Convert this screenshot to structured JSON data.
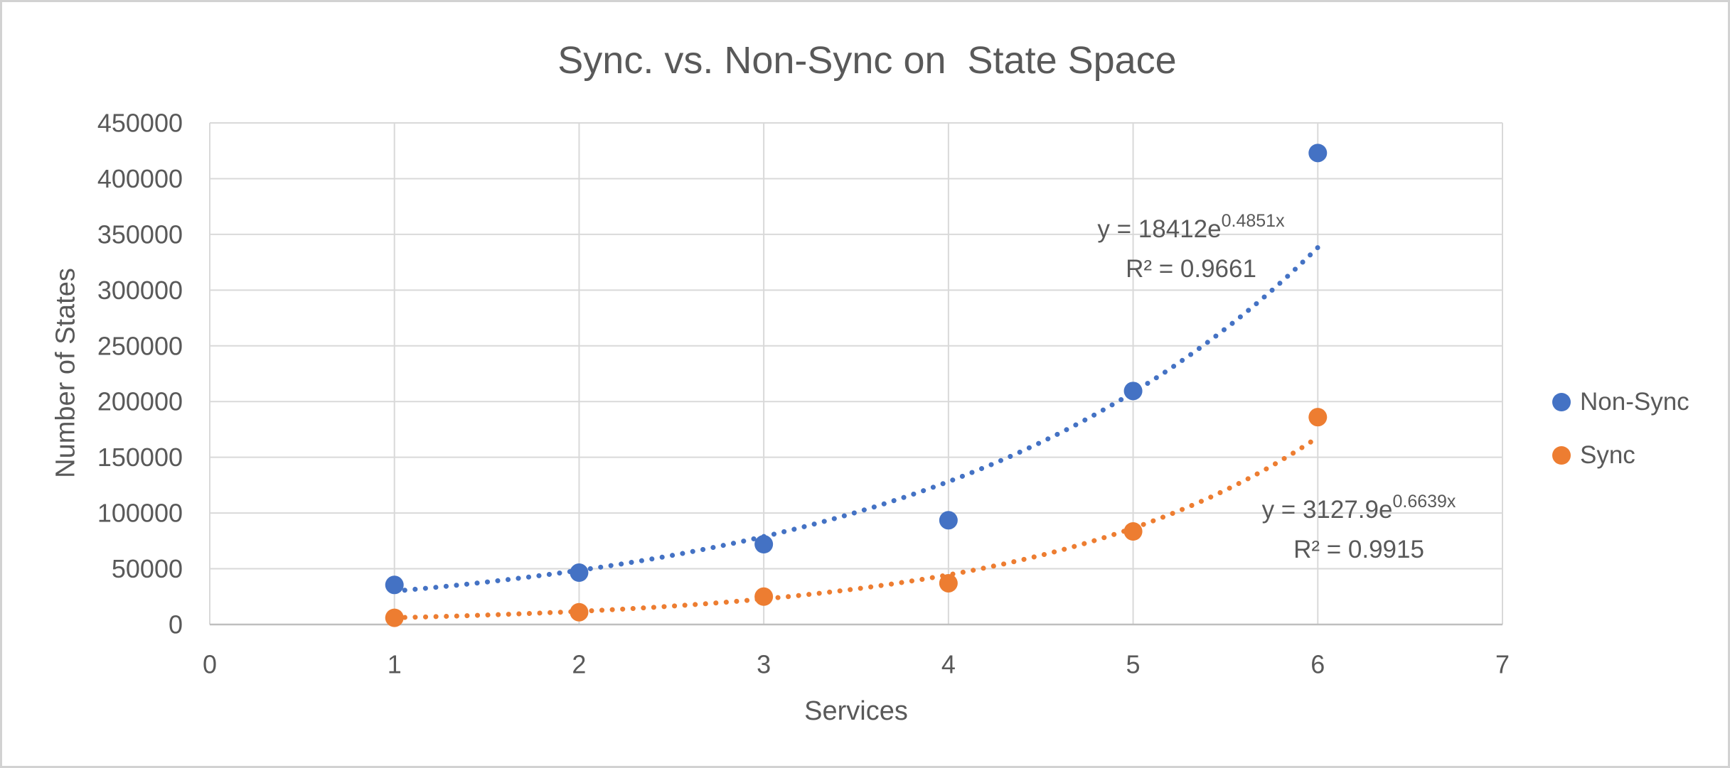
{
  "chart_data": {
    "type": "scatter",
    "title": "Sync. vs. Non-Sync on  State Space",
    "xlabel": "Services",
    "ylabel": "Number of States",
    "xlim": [
      0,
      7
    ],
    "ylim": [
      0,
      450000
    ],
    "x_ticks": [
      0,
      1,
      2,
      3,
      4,
      5,
      6,
      7
    ],
    "y_ticks": [
      0,
      50000,
      100000,
      150000,
      200000,
      250000,
      300000,
      350000,
      400000,
      450000
    ],
    "grid": true,
    "legend_position": "right-center",
    "series": [
      {
        "name": "Non-Sync",
        "color": "#4472C4",
        "x": [
          1,
          2,
          3,
          4,
          5,
          6
        ],
        "values": [
          35500,
          46500,
          72000,
          93500,
          209500,
          423000
        ],
        "trendline": {
          "type": "exponential",
          "a": 18412,
          "b": 0.4851,
          "x_start": 1,
          "x_end": 6,
          "style": "dotted",
          "equation_base": "y = 18412e",
          "equation_exponent": "0.4851x",
          "r2_label": "R² = 0.9661"
        }
      },
      {
        "name": "Sync",
        "color": "#ED7D31",
        "x": [
          1,
          2,
          3,
          4,
          5,
          6
        ],
        "values": [
          6000,
          11000,
          25000,
          37000,
          83500,
          186000
        ],
        "trendline": {
          "type": "exponential",
          "a": 3127.9,
          "b": 0.6639,
          "x_start": 1,
          "x_end": 6,
          "style": "dotted",
          "equation_base": "y = 3127.9e",
          "equation_exponent": "0.6639x",
          "r2_label": "R² = 0.9915"
        }
      }
    ],
    "colors": {
      "text": "#595959",
      "gridline": "#D9D9D9",
      "axis_line": "#BFBFBF",
      "background": "#FFFFFF",
      "frame_border": "#D2D2D2"
    }
  }
}
